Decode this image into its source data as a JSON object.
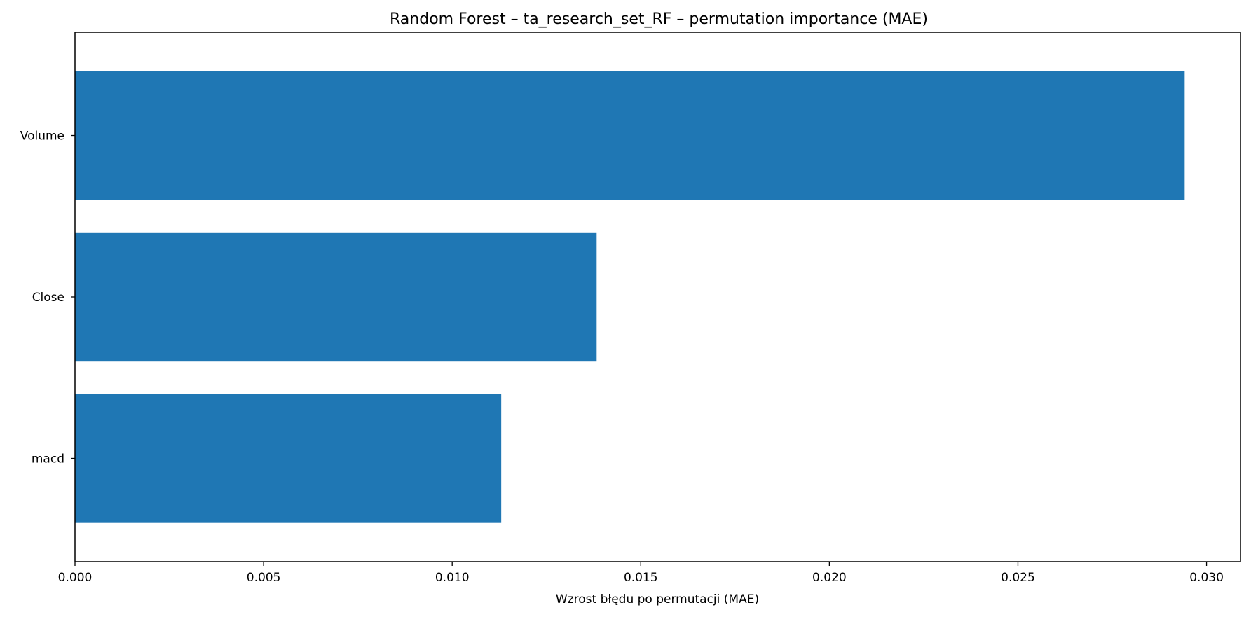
{
  "chart_data": {
    "type": "bar",
    "orientation": "horizontal",
    "title": "Random Forest – ta_research_set_RF – permutation importance (MAE)",
    "xlabel": "Wzrost błędu po permutacji (MAE)",
    "ylabel": "",
    "categories": [
      "Volume",
      "Close",
      "macd"
    ],
    "values": [
      0.02942,
      0.01383,
      0.0113
    ],
    "xlim": [
      0,
      0.0309
    ],
    "xticks": [
      0.0,
      0.005,
      0.01,
      0.015,
      0.02,
      0.025,
      0.03
    ],
    "xtick_labels": [
      "0.000",
      "0.005",
      "0.010",
      "0.015",
      "0.020",
      "0.025",
      "0.030"
    ],
    "bar_color": "#1f77b4",
    "grid": false,
    "legend": "none"
  }
}
